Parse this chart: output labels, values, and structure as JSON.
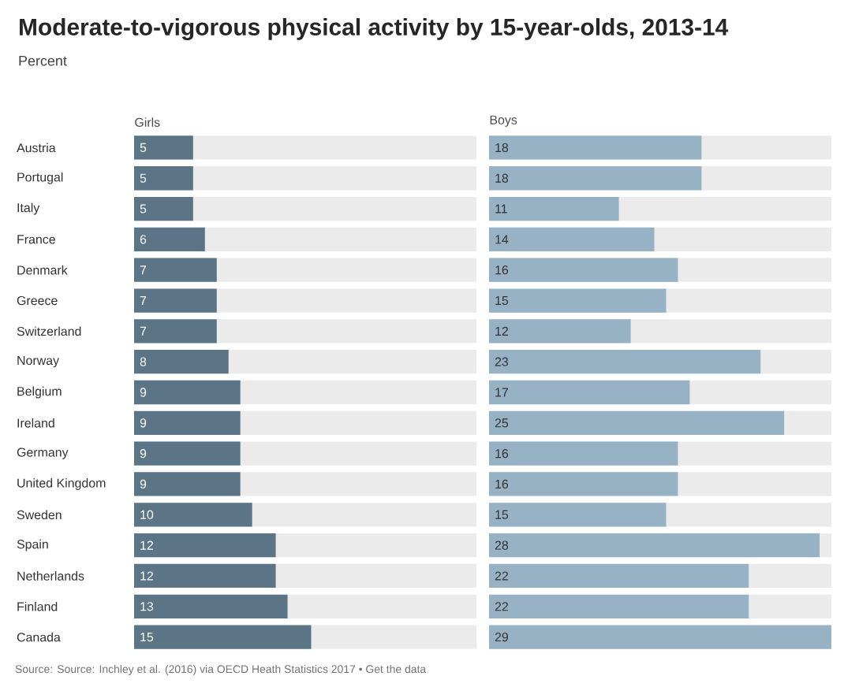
{
  "chart_data": [
    {
      "type": "bar",
      "orientation": "horizontal",
      "title": "Moderate-to-vigorous physical activity by 15-year-olds, 2013-14",
      "subtitle": "Percent",
      "xlabel": "Girls",
      "categories": [
        "Austria",
        "Portugal",
        "Italy",
        "France",
        "Denmark",
        "Greece",
        "Switzerland",
        "Norway",
        "Belgium",
        "Ireland",
        "Germany",
        "United Kingdom",
        "Sweden",
        "Spain",
        "Netherlands",
        "Finland",
        "Canada"
      ],
      "values": [
        5,
        5,
        5,
        6,
        7,
        7,
        7,
        8,
        9,
        9,
        9,
        9,
        10,
        12,
        12,
        13,
        15
      ],
      "color": "#5b7486",
      "xlim": [
        0,
        29
      ],
      "data_labels": true,
      "tick_labels": "y"
    },
    {
      "type": "bar",
      "orientation": "horizontal",
      "xlabel": "Boys",
      "categories": [
        null,
        null,
        null,
        null,
        null,
        null,
        null,
        null,
        null,
        null,
        null,
        null,
        null,
        null,
        null,
        null,
        null
      ],
      "values": [
        18,
        18,
        11,
        14,
        16,
        15,
        12,
        23,
        17,
        25,
        16,
        16,
        15,
        28,
        22,
        22,
        29
      ],
      "color": "#97b1c5",
      "xlim": [
        0,
        29
      ],
      "data_labels": true,
      "tick_labels": false,
      "annotations": [
        "Source: Source: Inchley et al. (2016) via OECD Heath Statistics 2017 • Get the data"
      ]
    }
  ]
}
